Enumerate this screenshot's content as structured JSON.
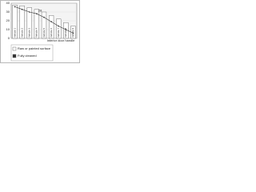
{
  "chart_data": {
    "type": "bar",
    "categories": [
      "Vehicle 1",
      "Vehicle 2",
      "Vehicle 3",
      "Vehicle 4",
      "Vehicle 5",
      "Vehicle 6",
      "Vehicle 7",
      "Vehicle 8",
      "Vehicle 9"
    ],
    "series": [
      {
        "name": "Raw or painted surface",
        "color": "#ffffff",
        "type": "bar",
        "values": [
          38,
          37,
          35,
          33,
          30,
          26,
          22,
          18,
          14
        ]
      },
      {
        "name": "Fully cleaned",
        "color": "#333333",
        "type": "line",
        "values": [
          36,
          33,
          30,
          28,
          24,
          19,
          14,
          10,
          6
        ]
      }
    ],
    "annotation": "28",
    "xlabel": "Interior door handle",
    "ylim": [
      0,
      40
    ],
    "yticks": [
      0,
      10,
      20,
      30,
      40
    ],
    "grid": true
  }
}
